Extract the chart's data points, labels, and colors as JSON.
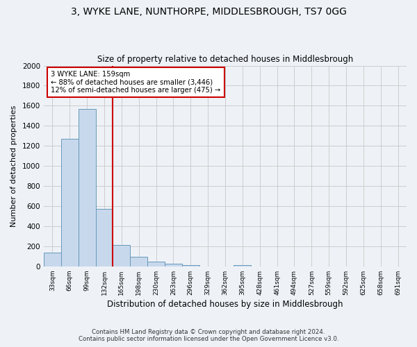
{
  "title": "3, WYKE LANE, NUNTHORPE, MIDDLESBROUGH, TS7 0GG",
  "subtitle": "Size of property relative to detached houses in Middlesbrough",
  "xlabel": "Distribution of detached houses by size in Middlesbrough",
  "ylabel": "Number of detached properties",
  "bar_color": "#c8d8ec",
  "bar_edge_color": "#6699bb",
  "grid_color": "#cccccc",
  "background_color": "#eef2f7",
  "bin_labels": [
    "33sqm",
    "66sqm",
    "99sqm",
    "132sqm",
    "165sqm",
    "198sqm",
    "230sqm",
    "263sqm",
    "296sqm",
    "329sqm",
    "362sqm",
    "395sqm",
    "428sqm",
    "461sqm",
    "494sqm",
    "527sqm",
    "559sqm",
    "592sqm",
    "625sqm",
    "658sqm",
    "691sqm"
  ],
  "bar_values": [
    140,
    1270,
    1570,
    575,
    215,
    95,
    50,
    25,
    10,
    0,
    0,
    10,
    0,
    0,
    0,
    0,
    0,
    0,
    0,
    0,
    0
  ],
  "vline_x_index": 4,
  "vline_color": "#cc0000",
  "annotation_title": "3 WYKE LANE: 159sqm",
  "annotation_line1": "← 88% of detached houses are smaller (3,446)",
  "annotation_line2": "12% of semi-detached houses are larger (475) →",
  "annotation_box_color": "#ffffff",
  "annotation_box_edge": "#cc0000",
  "ylim": [
    0,
    2000
  ],
  "yticks": [
    0,
    200,
    400,
    600,
    800,
    1000,
    1200,
    1400,
    1600,
    1800,
    2000
  ],
  "footnote1": "Contains HM Land Registry data © Crown copyright and database right 2024.",
  "footnote2": "Contains public sector information licensed under the Open Government Licence v3.0."
}
